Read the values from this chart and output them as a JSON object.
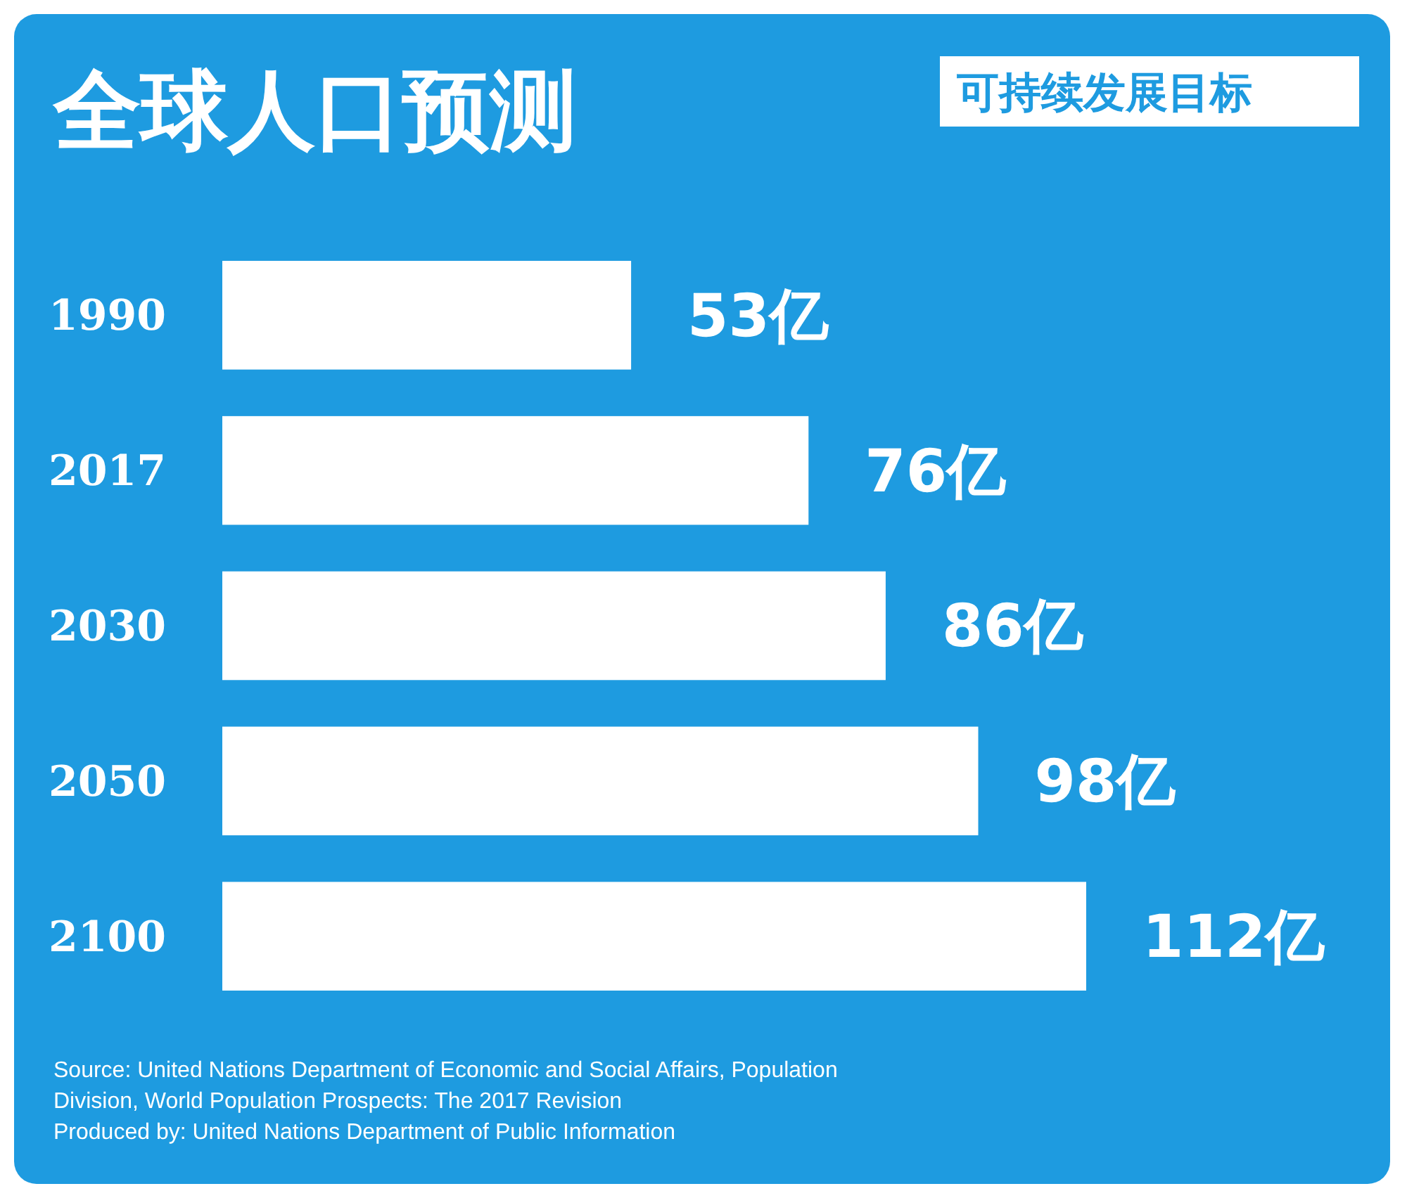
{
  "chart_data": {
    "type": "bar",
    "orientation": "horizontal",
    "title": "全球人口预测",
    "categories": [
      "1990",
      "2017",
      "2030",
      "2050",
      "2100"
    ],
    "values": [
      53,
      76,
      86,
      98,
      112
    ],
    "value_labels": [
      "53亿",
      "76亿",
      "86亿",
      "98亿",
      "112亿"
    ],
    "color": "#ffffff",
    "annotations": [
      "可持续发展目标",
      "Source: United Nations Department of Economic and Social Affairs, Population Division, World Population Prospects: The 2017 Revision",
      "Produced by: United Nations Department of Public Information"
    ]
  }
}
